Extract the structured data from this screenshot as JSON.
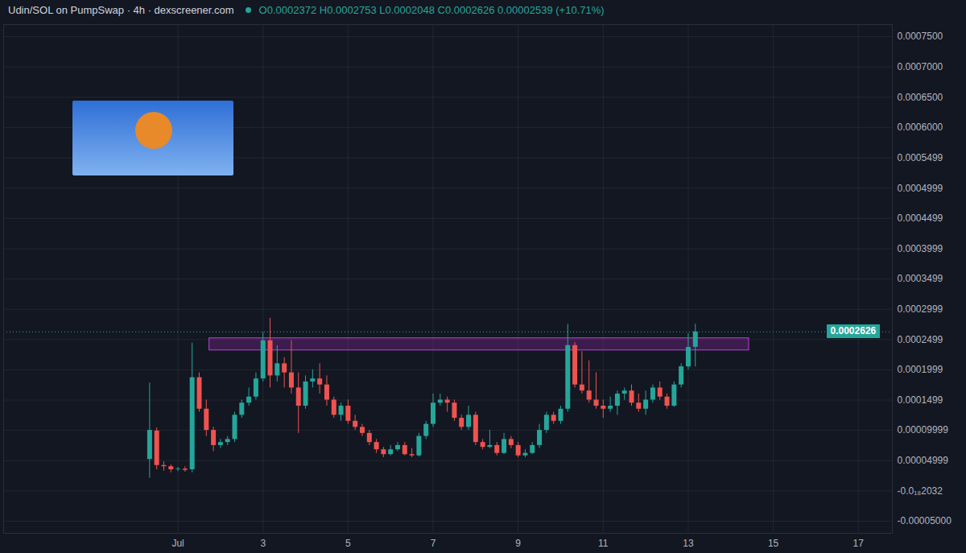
{
  "chart_data": {
    "type": "candlestick",
    "title": "Udin/SOL on PumpSwap · 4h · dexscreener.com",
    "subtitle": "O0.0002372 H0.0002753 L0.0002048 C0.0002626 0.00002539 (+10.71%)",
    "grid": true,
    "xlim": [
      -3.1,
      17.8
    ],
    "xticks": [
      {
        "value": 1,
        "label": "Jul"
      },
      3,
      5,
      7,
      9,
      11,
      13,
      15,
      17
    ],
    "ylim": [
      -7e-05,
      0.00077
    ],
    "yticks": [
      {
        "value": 0.00075,
        "label": "0.0007500"
      },
      {
        "value": 0.0007,
        "label": "0.0007000"
      },
      {
        "value": 0.00065,
        "label": "0.0006500"
      },
      {
        "value": 0.0006,
        "label": "0.0006000"
      },
      0.0005499,
      0.0004999,
      0.0004499,
      0.0003999,
      0.0003499,
      0.0002999,
      0.0002499,
      0.0001999,
      0.0001499,
      9.999e-05,
      4.999e-05,
      {
        "value": -2.032e-20,
        "label": "-0.0₁₈2032"
      },
      {
        "value": -5e-05,
        "label": "-0.00005000"
      }
    ],
    "x": [
      0.3333,
      0.5,
      0.6667,
      0.8333,
      1,
      1.1667,
      1.3333,
      1.5,
      1.6667,
      1.8333,
      2,
      2.1667,
      2.3333,
      2.5,
      2.6667,
      2.8333,
      3,
      3.1667,
      3.3333,
      3.5,
      3.6667,
      3.8333,
      4,
      4.1667,
      4.3333,
      4.5,
      4.6667,
      4.8333,
      5,
      5.1667,
      5.3333,
      5.5,
      5.6667,
      5.8333,
      6,
      6.1667,
      6.3333,
      6.5,
      6.6667,
      6.8333,
      7,
      7.1667,
      7.3333,
      7.5,
      7.6667,
      7.8333,
      8,
      8.1667,
      8.3333,
      8.5,
      8.6667,
      8.8333,
      9,
      9.1667,
      9.3333,
      9.5,
      9.6667,
      9.8333,
      10,
      10.1667,
      10.3333,
      10.5,
      10.6667,
      10.8333,
      11,
      11.1667,
      11.3333,
      11.5,
      11.6667,
      11.8333,
      12,
      12.1667,
      12.3333,
      12.5,
      12.6667,
      12.8333,
      13,
      13.1667
    ],
    "open": [
      5.2e-05,
      9.9e-05,
      4.2e-05,
      4e-05,
      3.5e-05,
      3.6e-05,
      3.5e-05,
      0.000187,
      0.000135,
      0.0001,
      7.5e-05,
      8e-05,
      8.5e-05,
      0.000125,
      0.000145,
      0.000155,
      0.000185,
      0.000248,
      0.00019,
      0.00021,
      0.000195,
      0.00017,
      0.00014,
      0.00018,
      0.000185,
      0.000175,
      0.00015,
      0.000125,
      0.00014,
      0.000115,
      0.000105,
      9.5e-05,
      8e-05,
      6.8e-05,
      6e-05,
      6.8e-05,
      7.5e-05,
      6e-05,
      5.8e-05,
      9e-05,
      0.00011,
      0.000145,
      0.00015,
      0.000145,
      0.00012,
      0.000105,
      0.000125,
      8e-05,
      7.2e-05,
      7.5e-05,
      6.2e-05,
      8.5e-05,
      7.5e-05,
      5.8e-05,
      6.2e-05,
      7.5e-05,
      0.0001,
      0.000125,
      0.000115,
      0.000135,
      0.00024,
      0.000175,
      0.000165,
      0.00015,
      0.00014,
      0.000135,
      0.00014,
      0.00016,
      0.000165,
      0.000145,
      0.000135,
      0.00015,
      0.00017,
      0.000155,
      0.00014,
      0.000175,
      0.000205,
      0.0002372
    ],
    "high": [
      0.000178,
      0.000104,
      4.8e-05,
      4.3e-05,
      3.9e-05,
      4e-05,
      0.000244,
      0.000195,
      0.00015,
      0.000105,
      8.5e-05,
      9e-05,
      0.00013,
      0.00015,
      0.00017,
      0.000195,
      0.000262,
      0.000285,
      0.00024,
      0.00022,
      0.000248,
      0.000195,
      0.00019,
      0.0002,
      0.00021,
      0.00019,
      0.000155,
      0.000145,
      0.00015,
      0.000125,
      0.00011,
      0.0001,
      8.5e-05,
      7.2e-05,
      7.5e-05,
      8e-05,
      8e-05,
      7e-05,
      9.5e-05,
      0.000115,
      0.00016,
      0.00016,
      0.000155,
      0.00015,
      0.000125,
      0.00014,
      0.00013,
      8.5e-05,
      0.0001,
      8e-05,
      9.5e-05,
      9e-05,
      8e-05,
      6.8e-05,
      8e-05,
      0.00011,
      0.00013,
      0.00013,
      0.00014,
      0.000275,
      0.000245,
      0.00023,
      0.000215,
      0.000195,
      0.00015,
      0.000155,
      0.000165,
      0.00017,
      0.000175,
      0.00016,
      0.000165,
      0.000175,
      0.00018,
      0.00016,
      0.00018,
      0.00021,
      0.00026,
      0.0002753
    ],
    "low": [
      2.1e-05,
      3.5e-05,
      3.3e-05,
      3e-05,
      3.2e-05,
      3.1e-05,
      3e-05,
      0.00013,
      9e-05,
      6.5e-05,
      7e-05,
      7.5e-05,
      8e-05,
      0.00012,
      0.00014,
      0.00015,
      0.00018,
      0.00017,
      0.00018,
      0.00017,
      0.00016,
      9.5e-05,
      0.000135,
      0.00017,
      0.00016,
      0.00014,
      0.00012,
      0.000115,
      0.00011,
      0.0001,
      9e-05,
      7.5e-05,
      6.2e-05,
      5.5e-05,
      5.8e-05,
      6.5e-05,
      5.8e-05,
      5.5e-05,
      5.6e-05,
      8.5e-05,
      0.000105,
      0.00014,
      0.00013,
      0.000115,
      0.0001,
      0.0001,
      7.5e-05,
      6.8e-05,
      7e-05,
      5.8e-05,
      6e-05,
      7e-05,
      5.5e-05,
      5.5e-05,
      6e-05,
      7e-05,
      9.5e-05,
      0.00011,
      0.00011,
      0.00013,
      0.00017,
      0.00016,
      0.000145,
      0.000135,
      0.00012,
      0.00013,
      0.000125,
      0.00015,
      0.00014,
      0.00013,
      0.000125,
      0.000145,
      0.00015,
      0.000135,
      0.000138,
      0.00017,
      0.0002,
      0.0002048
    ],
    "close": [
      0.0001,
      4.2e-05,
      4e-05,
      3.5e-05,
      3.6e-05,
      3.4e-05,
      0.000187,
      0.000135,
      0.0001,
      7.5e-05,
      8e-05,
      8.5e-05,
      0.000125,
      0.000145,
      0.000155,
      0.000185,
      0.000248,
      0.00019,
      0.00021,
      0.000195,
      0.00017,
      0.00014,
      0.00018,
      0.000185,
      0.000175,
      0.00015,
      0.000125,
      0.00014,
      0.000115,
      0.000105,
      9.5e-05,
      8e-05,
      6.8e-05,
      6e-05,
      6.8e-05,
      7.5e-05,
      6e-05,
      5.8e-05,
      9e-05,
      0.00011,
      0.000145,
      0.00015,
      0.000145,
      0.00012,
      0.000105,
      0.000125,
      8e-05,
      7.2e-05,
      7.5e-05,
      6.2e-05,
      8.5e-05,
      7.5e-05,
      5.8e-05,
      6.2e-05,
      7.5e-05,
      0.0001,
      0.000125,
      0.000115,
      0.000135,
      0.00024,
      0.000175,
      0.000165,
      0.00015,
      0.00014,
      0.000135,
      0.00014,
      0.00016,
      0.000165,
      0.000145,
      0.000135,
      0.00015,
      0.00017,
      0.000155,
      0.00014,
      0.000175,
      0.000205,
      0.000237,
      0.0002626
    ],
    "zone": {
      "x": [
        1.74,
        14.43
      ],
      "y": [
        0.000232,
        0.000252
      ]
    },
    "annotations": [
      {
        "text": "0.0002626",
        "y": 0.0002626
      }
    ]
  }
}
